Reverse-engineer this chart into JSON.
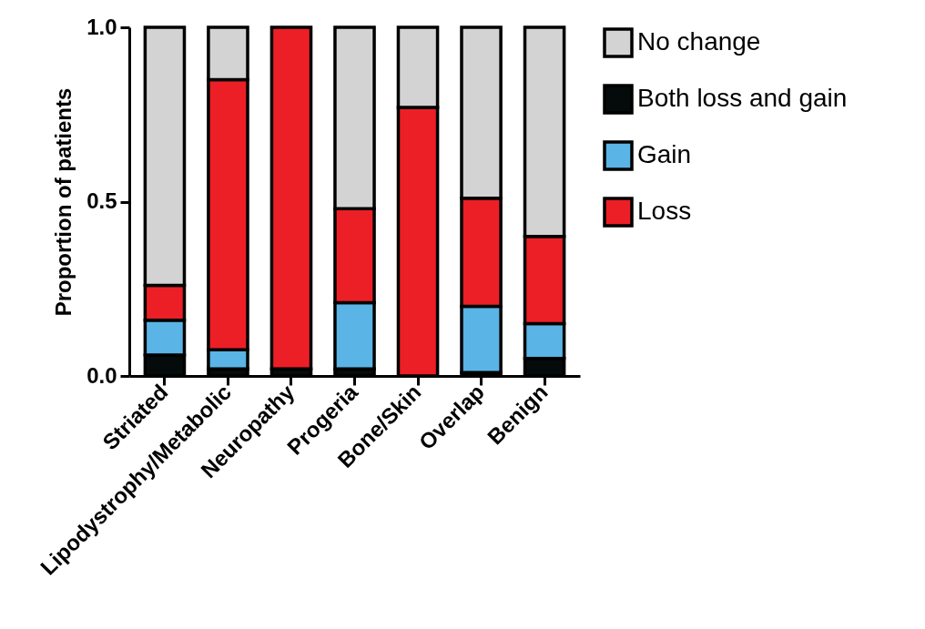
{
  "chart_data": {
    "type": "bar",
    "stacked": true,
    "ylabel": "Proportion of patients",
    "categories": [
      "Striated",
      "Lipodystrophy/Metabolic",
      "Neuropathy",
      "Progeria",
      "Bone/Skin",
      "Overlap",
      "Benign"
    ],
    "series": [
      {
        "name": "Both loss and gain",
        "color": "#050a0a",
        "values": [
          0.06,
          0.02,
          0.02,
          0.02,
          0,
          0.01,
          0.05
        ]
      },
      {
        "name": "Gain",
        "color": "#5ab4e5",
        "values": [
          0.1,
          0.055,
          0,
          0.19,
          0,
          0.19,
          0.1
        ]
      },
      {
        "name": "Loss",
        "color": "#ec1f26",
        "values": [
          0.1,
          0.775,
          0.98,
          0.27,
          0.77,
          0.31,
          0.25
        ]
      },
      {
        "name": "No change",
        "color": "#d3d3d3",
        "values": [
          0.74,
          0.15,
          0,
          0.52,
          0.23,
          0.49,
          0.6
        ]
      }
    ],
    "ylim": [
      0,
      1
    ],
    "yticks": [
      {
        "value": 0,
        "label": "0.0"
      },
      {
        "value": 0.5,
        "label": "0.5"
      },
      {
        "value": 1,
        "label": "1.0"
      }
    ],
    "legend": "right",
    "grid": false
  }
}
